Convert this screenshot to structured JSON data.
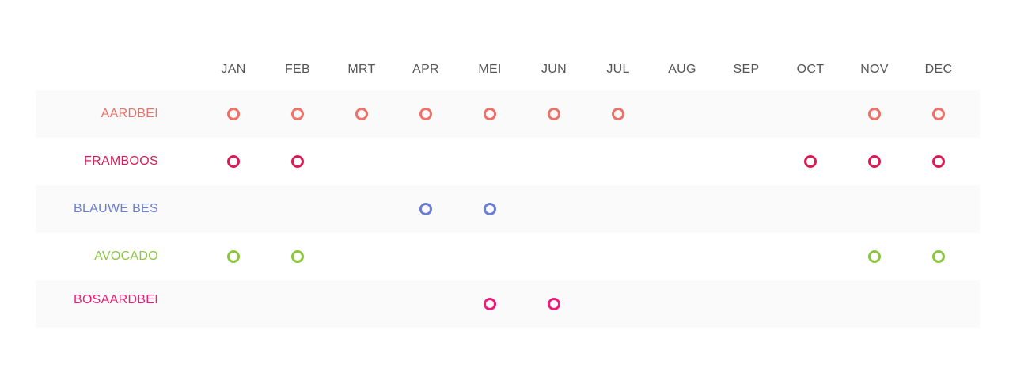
{
  "months": [
    "JAN",
    "FEB",
    "MRT",
    "APR",
    "MEI",
    "JUN",
    "JUL",
    "AUG",
    "SEP",
    "OCT",
    "NOV",
    "DEC"
  ],
  "rows": [
    {
      "name": "AARDBEI",
      "color": "#f07068",
      "months": [
        1,
        1,
        1,
        1,
        1,
        1,
        1,
        0,
        0,
        0,
        1,
        1
      ]
    },
    {
      "name": "FRAMBOOS",
      "color": "#d81b55",
      "months": [
        1,
        1,
        0,
        0,
        0,
        0,
        0,
        0,
        0,
        1,
        1,
        1
      ]
    },
    {
      "name": "BLAUWE BES",
      "color": "#6a7fd4",
      "months": [
        0,
        0,
        0,
        1,
        1,
        0,
        0,
        0,
        0,
        0,
        0,
        0
      ]
    },
    {
      "name": "AVOCADO",
      "color": "#8cc63f",
      "months": [
        1,
        1,
        0,
        0,
        0,
        0,
        0,
        0,
        0,
        0,
        1,
        1
      ]
    },
    {
      "name": "BOSAARDBEI",
      "color": "#ee1c78",
      "months": [
        0,
        0,
        0,
        0,
        1,
        1,
        0,
        0,
        0,
        0,
        0,
        0
      ]
    }
  ]
}
